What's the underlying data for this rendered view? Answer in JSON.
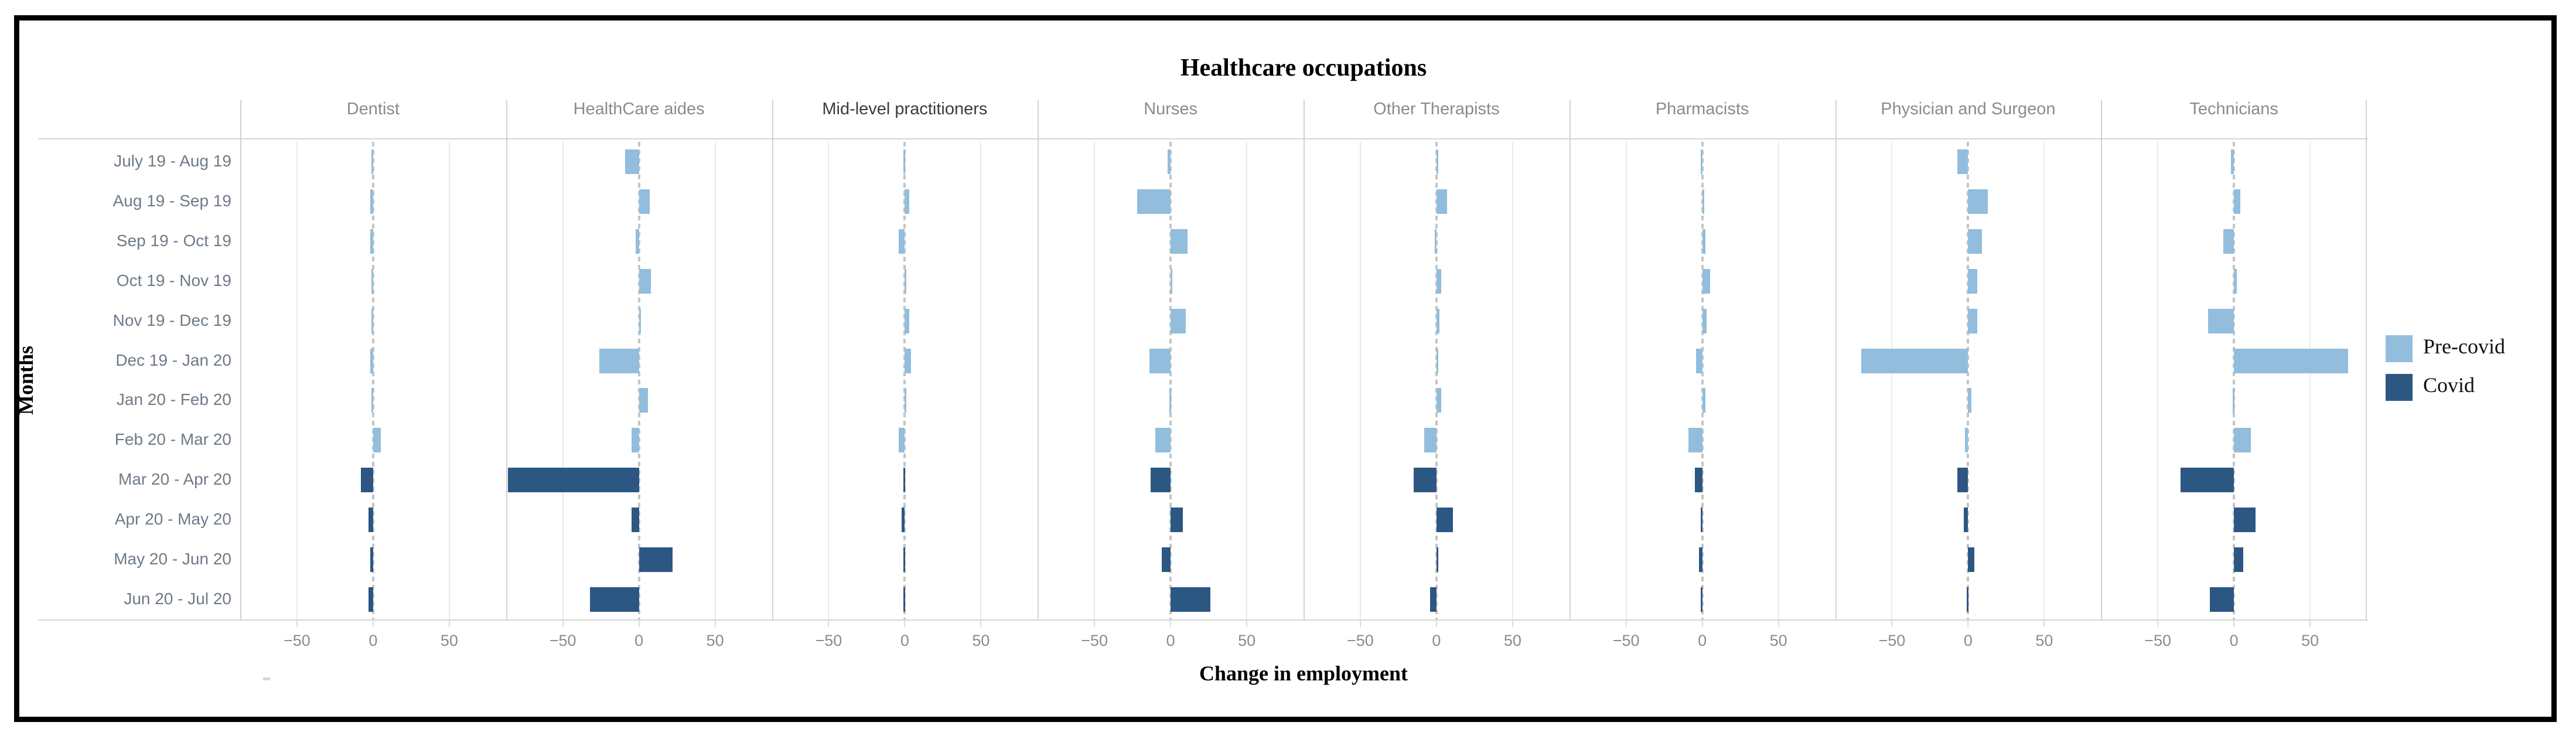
{
  "title": "Healthcare occupations",
  "axes": {
    "x_title": "Change in employment",
    "y_title": "Months",
    "x_tick_labels": [
      "−50",
      "0",
      "50"
    ],
    "x_tick_values": [
      -50,
      0,
      50
    ]
  },
  "legend": {
    "items": [
      {
        "label": "Pre-covid",
        "color": "#92bddc"
      },
      {
        "label": "Covid",
        "color": "#2d5783"
      }
    ]
  },
  "colors": {
    "pre_covid": "#92bddc",
    "covid": "#2d5783",
    "grid": "#eaeaea",
    "separator": "#d2d2d2",
    "zero_line": "#c5c5c5"
  },
  "chart_data": {
    "type": "bar",
    "orientation": "horizontal",
    "title": "Healthcare occupations",
    "xlabel": "Change in employment",
    "ylabel": "Months",
    "xlim": [
      -87,
      87
    ],
    "x_ticks": [
      -50,
      0,
      50
    ],
    "grid": "vertical, light gray at ±50; dotted reference line at 0 per panel",
    "legend_position": "right",
    "period_rule": "first 8 month pairs = Pre-covid (light blue), last 4 = Covid (dark blue)",
    "categories": [
      "July 19 - Aug 19",
      "Aug 19 - Sep 19",
      "Sep 19 - Oct 19",
      "Oct 19 - Nov 19",
      "Nov 19 - Dec 19",
      "Dec 19 - Jan 20",
      "Jan 20 - Feb 20",
      "Feb 20 - Mar 20",
      "Mar 20 - Apr 20",
      "Apr 20 - May 20",
      "May 20 - Jun 20",
      "Jun 20 - Jul 20"
    ],
    "series": [
      {
        "name": "Dentist",
        "values": [
          -1,
          -2,
          -2,
          -1,
          -1,
          -2,
          -1,
          5,
          -8,
          -3,
          -2,
          -3
        ]
      },
      {
        "name": "HealthCare aides",
        "values": [
          -9,
          7,
          -2,
          8,
          1,
          -26,
          6,
          -5,
          -86,
          -5,
          22,
          -32
        ]
      },
      {
        "name": "Mid-level practitioners",
        "values": [
          -1,
          3,
          -4,
          1,
          3,
          4,
          1,
          -4,
          -1,
          -2,
          -1,
          -1
        ]
      },
      {
        "name": "Nurses",
        "values": [
          -2,
          -22,
          11,
          1,
          10,
          -14,
          -1,
          -10,
          -13,
          8,
          -6,
          26
        ]
      },
      {
        "name": "Other Therapists",
        "values": [
          1,
          7,
          -1,
          3,
          2,
          1,
          3,
          -8,
          -15,
          11,
          1,
          -4
        ]
      },
      {
        "name": "Pharmacists",
        "values": [
          -1,
          1,
          2,
          5,
          3,
          -4,
          2,
          -9,
          -5,
          -1,
          -2,
          -1
        ]
      },
      {
        "name": "Physician and Surgeon",
        "values": [
          -7,
          13,
          9,
          6,
          6,
          -70,
          2,
          -2,
          -7,
          -3,
          4,
          -1
        ]
      },
      {
        "name": "Technicians",
        "values": [
          -2,
          4,
          -7,
          2,
          -17,
          75,
          -1,
          11,
          -35,
          14,
          6,
          -16
        ]
      }
    ]
  }
}
